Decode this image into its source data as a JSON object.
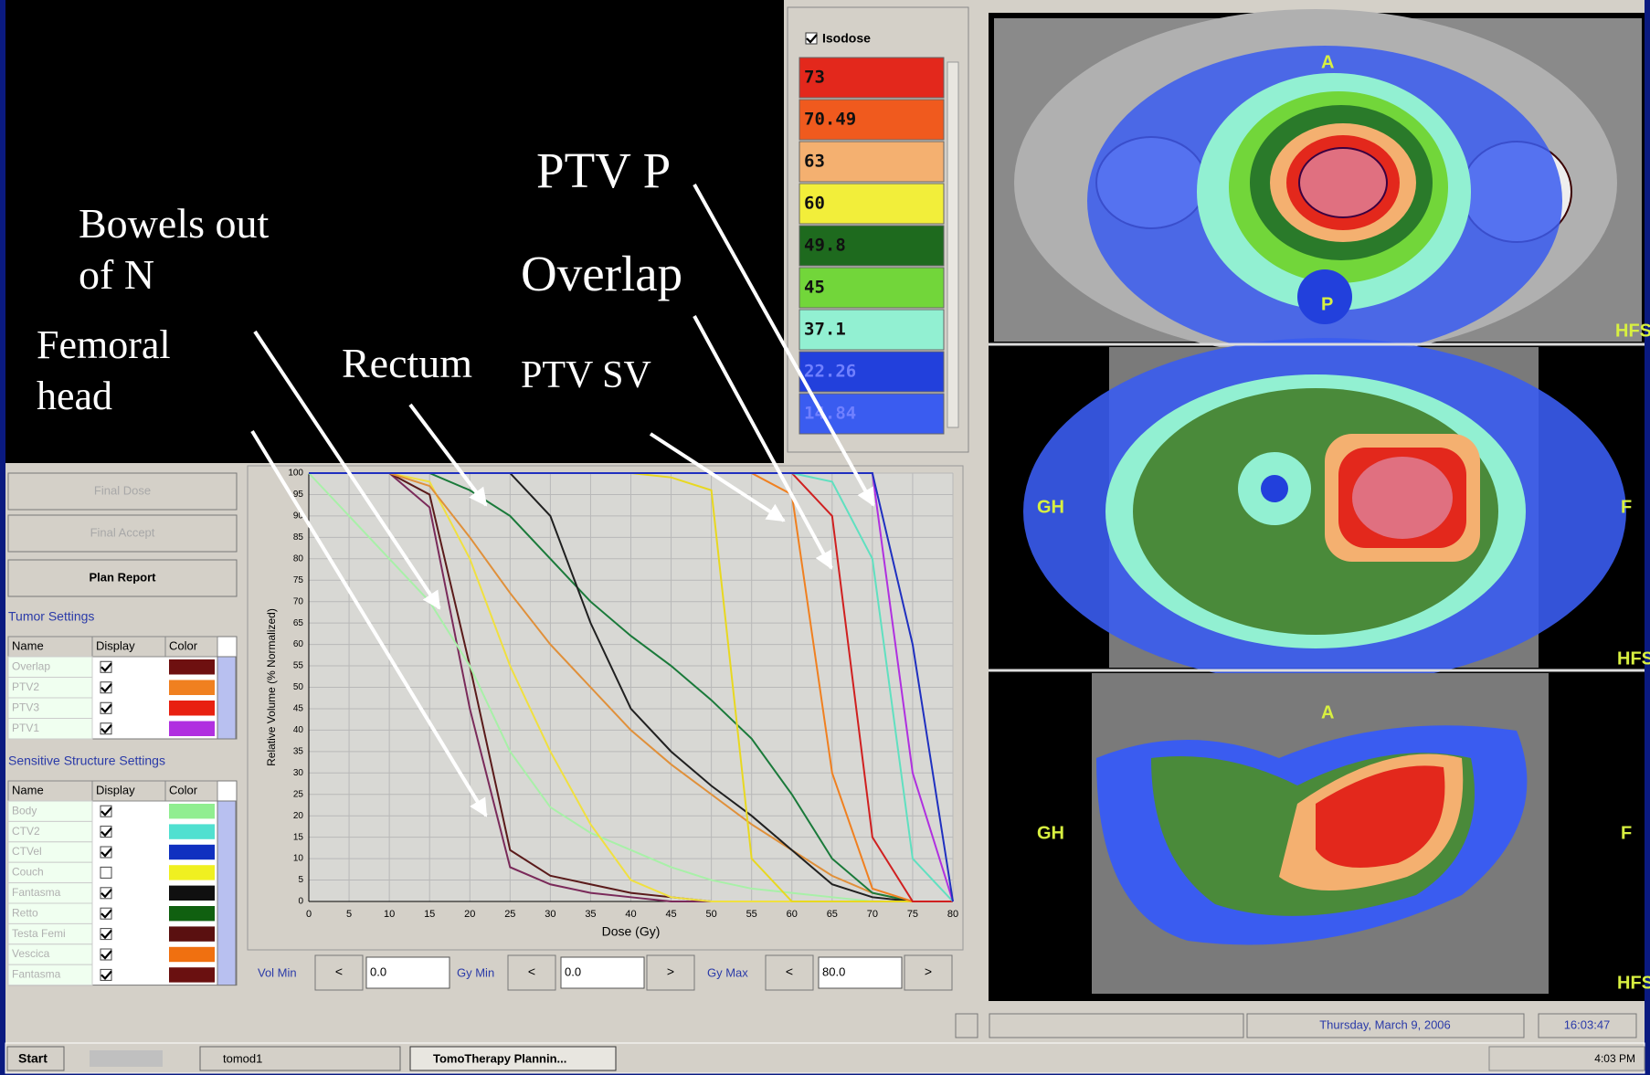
{
  "annotations": [
    {
      "lines": [
        "Bowels out",
        "of N"
      ]
    },
    {
      "lines": [
        "Femoral",
        "head"
      ]
    },
    {
      "lines": [
        "Rectum"
      ]
    },
    {
      "lines": [
        "PTV P"
      ]
    },
    {
      "lines": [
        "Overlap"
      ]
    },
    {
      "lines": [
        "PTV SV"
      ]
    }
  ],
  "isodose": {
    "label": "Isodose",
    "levels": [
      {
        "value": "73",
        "color": "#e3281c"
      },
      {
        "value": "70.49",
        "color": "#f05a1e"
      },
      {
        "value": "63",
        "color": "#f4b070"
      },
      {
        "value": "60",
        "color": "#f2ee3a"
      },
      {
        "value": "49.8",
        "color": "#1e6a1e"
      },
      {
        "value": "45",
        "color": "#72d63a"
      },
      {
        "value": "37.1",
        "color": "#92f0d2"
      },
      {
        "value": "22.26",
        "color": "#2240dc"
      },
      {
        "value": "14.84",
        "color": "#3a5cf0"
      }
    ]
  },
  "chart_data": {
    "type": "line",
    "x_label": "Dose (Gy)",
    "y_label": "Relative Volume (% Normalized)",
    "x": [
      0,
      10,
      15,
      20,
      25,
      30,
      35,
      40,
      45,
      50,
      55,
      60,
      65,
      70,
      75,
      80
    ],
    "xlim": [
      0,
      80
    ],
    "ylim": [
      0,
      100
    ],
    "xticks": [
      0,
      5,
      10,
      15,
      20,
      25,
      30,
      35,
      40,
      45,
      50,
      55,
      60,
      65,
      70,
      75,
      80
    ],
    "yticks": [
      0,
      5,
      10,
      15,
      20,
      25,
      30,
      35,
      40,
      45,
      50,
      55,
      60,
      65,
      70,
      75,
      80,
      85,
      90,
      95,
      100
    ],
    "grid": true,
    "series": [
      {
        "color": "#7a2a5a",
        "values": [
          100,
          100,
          92,
          45,
          8,
          4,
          2,
          1,
          0,
          0,
          0,
          0,
          0,
          0,
          0,
          0
        ]
      },
      {
        "color": "#5a1a1a",
        "values": [
          100,
          100,
          95,
          55,
          12,
          6,
          4,
          2,
          1,
          0,
          0,
          0,
          0,
          0,
          0,
          0
        ]
      },
      {
        "color": "#a8f0a8",
        "values": [
          100,
          80,
          70,
          55,
          35,
          22,
          16,
          12,
          8,
          5,
          3,
          2,
          1,
          0,
          0,
          0
        ]
      },
      {
        "color": "#f0e040",
        "values": [
          100,
          100,
          98,
          80,
          55,
          35,
          18,
          5,
          1,
          0,
          0,
          0,
          0,
          0,
          0,
          0
        ]
      },
      {
        "color": "#e0903a",
        "values": [
          100,
          100,
          97,
          85,
          72,
          60,
          50,
          40,
          32,
          25,
          18,
          12,
          6,
          2,
          0,
          0
        ]
      },
      {
        "color": "#1a7a3a",
        "values": [
          100,
          100,
          100,
          96,
          90,
          80,
          70,
          62,
          55,
          47,
          38,
          25,
          10,
          2,
          0,
          0
        ]
      },
      {
        "color": "#202020",
        "values": [
          100,
          100,
          100,
          100,
          100,
          90,
          65,
          45,
          35,
          27,
          20,
          12,
          4,
          1,
          0,
          0
        ]
      },
      {
        "color": "#e8d820",
        "values": [
          100,
          100,
          100,
          100,
          100,
          100,
          100,
          100,
          99,
          96,
          10,
          0,
          0,
          0,
          0,
          0
        ]
      },
      {
        "color": "#f08020",
        "values": [
          100,
          100,
          100,
          100,
          100,
          100,
          100,
          100,
          100,
          100,
          100,
          95,
          30,
          3,
          0,
          0
        ]
      },
      {
        "color": "#d02020",
        "values": [
          100,
          100,
          100,
          100,
          100,
          100,
          100,
          100,
          100,
          100,
          100,
          100,
          90,
          15,
          0,
          0
        ]
      },
      {
        "color": "#60e0c0",
        "values": [
          100,
          100,
          100,
          100,
          100,
          100,
          100,
          100,
          100,
          100,
          100,
          100,
          98,
          80,
          10,
          0
        ]
      },
      {
        "color": "#b030e0",
        "values": [
          100,
          100,
          100,
          100,
          100,
          100,
          100,
          100,
          100,
          100,
          100,
          100,
          100,
          100,
          30,
          0
        ]
      },
      {
        "color": "#2030c0",
        "values": [
          100,
          100,
          100,
          100,
          100,
          100,
          100,
          100,
          100,
          100,
          100,
          100,
          100,
          100,
          60,
          0
        ]
      }
    ]
  },
  "buttons": [
    "Final Dose",
    "Final Accept",
    "Plan Report"
  ],
  "tumor_settings": {
    "title": "Tumor Settings",
    "columns": [
      "Name",
      "Display",
      "Color"
    ],
    "rows": [
      {
        "name": "Overlap",
        "display": true,
        "color": "#6e1010"
      },
      {
        "name": "PTV2",
        "display": true,
        "color": "#f08020"
      },
      {
        "name": "PTV3",
        "display": true,
        "color": "#e82010"
      },
      {
        "name": "PTV1",
        "display": true,
        "color": "#b030e0"
      }
    ]
  },
  "sensitive_settings": {
    "title": "Sensitive Structure Settings",
    "columns": [
      "Name",
      "Display",
      "Color"
    ],
    "rows": [
      {
        "name": "Body",
        "display": true,
        "color": "#90ee90"
      },
      {
        "name": "CTV2",
        "display": true,
        "color": "#50e0d0"
      },
      {
        "name": "CTVel",
        "display": true,
        "color": "#1030c0"
      },
      {
        "name": "Couch",
        "display": false,
        "color": "#f0f020"
      },
      {
        "name": "Fantasma",
        "display": true,
        "color": "#101010"
      },
      {
        "name": "Retto",
        "display": true,
        "color": "#106010"
      },
      {
        "name": "Testa Femi",
        "display": true,
        "color": "#5a1010"
      },
      {
        "name": "Vescica",
        "display": true,
        "color": "#f07010"
      },
      {
        "name": "Fantasma",
        "display": true,
        "color": "#6a1010"
      }
    ]
  },
  "controls": [
    {
      "label": "Vol Min",
      "dec": "<",
      "value": "0.0"
    },
    {
      "label": "Gy Min",
      "dec": "<",
      "value": "0.0",
      "inc": ">"
    },
    {
      "label": "Gy Max",
      "dec": "<",
      "value": "80.0",
      "inc": ">"
    }
  ],
  "status": {
    "date": "Thursday, March 9, 2006",
    "time": "16:03:47"
  },
  "taskbar": {
    "start": "Start",
    "tasks": [
      "tomod1",
      "TomoTherapy Plannin..."
    ],
    "clock": "4:03 PM"
  },
  "ct_views": [
    {
      "labels": [
        "A",
        "P",
        "HFS"
      ]
    },
    {
      "labels": [
        "GH",
        "F",
        "HFS"
      ]
    },
    {
      "labels": [
        "A",
        "GH",
        "F",
        "HFS"
      ]
    }
  ]
}
